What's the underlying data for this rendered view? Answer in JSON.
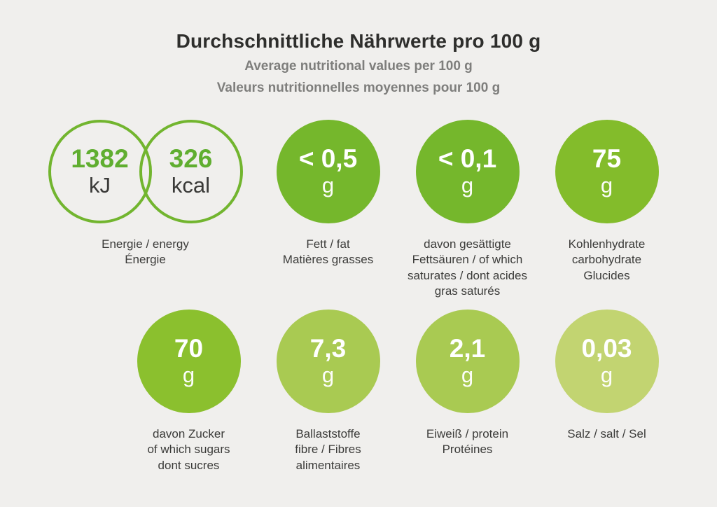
{
  "page": {
    "background": "#f0efed"
  },
  "header": {
    "title": "Durchschnittliche Nährwerte pro 100 g",
    "subtitle_en": "Average nutritional values per 100 g",
    "subtitle_fr": "Valeurs nutritionnelles moyennes pour 100 g"
  },
  "colors": {
    "ring_green": "#72b52f",
    "energy_value_green": "#60ae30",
    "dark_text": "#3b3b39",
    "subtitle_gray": "#7e7e7c"
  },
  "energy": {
    "label": "Energie / energy\nÉnergie",
    "ring_color": "#72b52f",
    "value_color": "#60ae30",
    "kj": {
      "value": "1382",
      "unit": "kJ"
    },
    "kcal": {
      "value": "326",
      "unit": "kcal"
    }
  },
  "nutrients": [
    {
      "value": "< 0,5",
      "unit": "g",
      "color": "#75b72c",
      "label": "Fett / fat\nMatières grasses"
    },
    {
      "value": "< 0,1",
      "unit": "g",
      "color": "#75b72c",
      "label": "davon gesättigte\nFettsäuren / of which\nsaturates / dont acides\ngras saturés"
    },
    {
      "value": "75",
      "unit": "g",
      "color": "#83bc2b",
      "label": "Kohlenhydrate\ncarbohydrate\nGlucides"
    },
    {
      "value": "70",
      "unit": "g",
      "color": "#8bc02e",
      "label": "davon Zucker\nof which sugars\ndont sucres"
    },
    {
      "value": "7,3",
      "unit": "g",
      "color": "#a9ca52",
      "label": "Ballaststoffe\nfibre / Fibres\nalimentaires"
    },
    {
      "value": "2,1",
      "unit": "g",
      "color": "#a9ca52",
      "label": "Eiweiß / protein\nProtéines"
    },
    {
      "value": "0,03",
      "unit": "g",
      "color": "#c2d471",
      "label": "Salz / salt / Sel"
    }
  ],
  "chart_data": {
    "type": "table",
    "title": "Durchschnittliche Nährwerte pro 100 g",
    "subtitle": [
      "Average nutritional values per 100 g",
      "Valeurs nutritionnelles moyennes pour 100 g"
    ],
    "columns": [
      "nutrient",
      "value_per_100g"
    ],
    "rows": [
      {
        "nutrient": "Energie / energy / Énergie",
        "value_per_100g": "1382 kJ / 326 kcal"
      },
      {
        "nutrient": "Fett / fat / Matières grasses",
        "value_per_100g": "< 0,5 g"
      },
      {
        "nutrient": "davon gesättigte Fettsäuren / of which saturates / dont acides gras saturés",
        "value_per_100g": "< 0,1 g"
      },
      {
        "nutrient": "Kohlenhydrate / carbohydrate / Glucides",
        "value_per_100g": "75 g"
      },
      {
        "nutrient": "davon Zucker / of which sugars / dont sucres",
        "value_per_100g": "70 g"
      },
      {
        "nutrient": "Ballaststoffe / fibre / Fibres alimentaires",
        "value_per_100g": "7,3 g"
      },
      {
        "nutrient": "Eiweiß / protein / Protéines",
        "value_per_100g": "2,1 g"
      },
      {
        "nutrient": "Salz / salt / Sel",
        "value_per_100g": "0,03 g"
      }
    ]
  }
}
